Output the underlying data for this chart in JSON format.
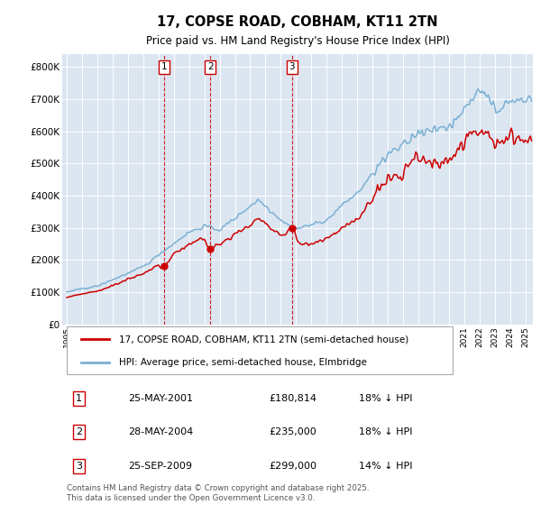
{
  "title": "17, COPSE ROAD, COBHAM, KT11 2TN",
  "subtitle": "Price paid vs. HM Land Registry's House Price Index (HPI)",
  "legend_red": "17, COPSE ROAD, COBHAM, KT11 2TN (semi-detached house)",
  "legend_blue": "HPI: Average price, semi-detached house, Elmbridge",
  "footnote": "Contains HM Land Registry data © Crown copyright and database right 2025.\nThis data is licensed under the Open Government Licence v3.0.",
  "transactions": [
    {
      "num": 1,
      "date": "25-MAY-2001",
      "price": 180814,
      "pct": "18% ↓ HPI",
      "year": 2001.38
    },
    {
      "num": 2,
      "date": "28-MAY-2004",
      "price": 235000,
      "pct": "18% ↓ HPI",
      "year": 2004.4
    },
    {
      "num": 3,
      "date": "25-SEP-2009",
      "price": 299000,
      "pct": "14% ↓ HPI",
      "year": 2009.73
    }
  ],
  "background_color": "#ffffff",
  "plot_bg_color": "#dce6f1",
  "red_color": "#cc0000",
  "blue_color": "#7ab0d4",
  "ylim": [
    0,
    840000
  ],
  "xlim_start": 1994.7,
  "xlim_end": 2025.5
}
